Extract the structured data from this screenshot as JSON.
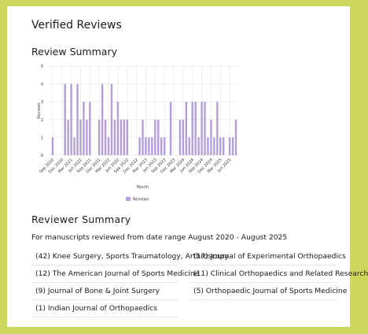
{
  "page": {
    "title": "Verified Reviews",
    "review_summary_heading": "Review Summary",
    "reviewer_summary_heading": "Reviewer Summary",
    "date_range_text": "For manuscripts reviewed from date range August 2020 - August 2025"
  },
  "colors": {
    "background": "#cdd75c",
    "bar": "#b39ddb",
    "grid": "#eeeeee"
  },
  "journals": [
    "(42) Knee Surgery, Sports Traumatology, Arthroscopy",
    "(17) Journal of Experimental Orthopaedics",
    "(12) The American Journal of Sports Medicine",
    "(11) Clinical Orthopaedics and Related Research",
    "(9) Journal of Bone & Joint Surgery",
    "(5) Orthopaedic Journal of Sports Medicine",
    "(1) Indian Journal of Orthopaedics"
  ],
  "chart_data": {
    "type": "bar",
    "xlabel": "Month",
    "ylabel": "Reviews",
    "ylim": [
      0,
      5
    ],
    "yticks": [
      0,
      1,
      2,
      3,
      4,
      5
    ],
    "legend": "Reviews",
    "legend_position": "bottom",
    "grid": true,
    "categories": [
      "Aug 2020",
      "Sep 2020",
      "Oct 2020",
      "Nov 2020",
      "Dec 2020",
      "Jan 2021",
      "Feb 2021",
      "Mar 2021",
      "Apr 2021",
      "May 2021",
      "Jun 2021",
      "Jul 2021",
      "Aug 2021",
      "Sep 2021",
      "Oct 2021",
      "Nov 2021",
      "Dec 2021",
      "Jan 2022",
      "Feb 2022",
      "Mar 2022",
      "Apr 2022",
      "May 2022",
      "Jun 2022",
      "Jul 2022",
      "Aug 2022",
      "Sep 2022",
      "Oct 2022",
      "Nov 2022",
      "Dec 2022",
      "Jan 2023",
      "Feb 2023",
      "Mar 2023",
      "Apr 2023",
      "May 2023",
      "Jun 2023",
      "Jul 2023",
      "Aug 2023",
      "Sep 2023",
      "Oct 2023",
      "Nov 2023",
      "Dec 2023",
      "Jan 2024",
      "Feb 2024",
      "Mar 2024",
      "Apr 2024",
      "May 2024",
      "Jun 2024",
      "Jul 2024",
      "Aug 2024",
      "Sep 2024",
      "Oct 2024",
      "Nov 2024",
      "Dec 2024",
      "Jan 2025",
      "Feb 2025",
      "Mar 2025",
      "Apr 2025",
      "May 2025",
      "Jun 2025",
      "Jul 2025",
      "Aug 2025"
    ],
    "values": [
      0,
      1,
      0,
      0,
      0,
      4,
      2,
      4,
      1,
      4,
      2,
      3,
      2,
      3,
      0,
      0,
      2,
      4,
      2,
      1,
      4,
      2,
      3,
      2,
      2,
      2,
      0,
      0,
      0,
      1,
      2,
      1,
      1,
      1,
      2,
      2,
      1,
      1,
      0,
      3,
      0,
      0,
      2,
      2,
      3,
      1,
      3,
      3,
      1,
      3,
      3,
      1,
      2,
      1,
      3,
      1,
      1,
      0,
      1,
      1,
      2
    ],
    "tick_labels": [
      {
        "index": 1,
        "label": "Sep 2020"
      },
      {
        "index": 4,
        "label": "Dec 2020"
      },
      {
        "index": 7,
        "label": "Mar 2021"
      },
      {
        "index": 10,
        "label": "Jun 2021"
      },
      {
        "index": 13,
        "label": "Sep 2021"
      },
      {
        "index": 16,
        "label": "Dec 2021"
      },
      {
        "index": 19,
        "label": "Mar 2022"
      },
      {
        "index": 22,
        "label": "Jun 2022"
      },
      {
        "index": 25,
        "label": "Sep 2022"
      },
      {
        "index": 28,
        "label": "Dec 2022"
      },
      {
        "index": 31,
        "label": "Mar 2023"
      },
      {
        "index": 34,
        "label": "Jun 2023"
      },
      {
        "index": 37,
        "label": "Sep 2023"
      },
      {
        "index": 40,
        "label": "Dec 2023"
      },
      {
        "index": 43,
        "label": "Mar 2024"
      },
      {
        "index": 46,
        "label": "Jun 2024"
      },
      {
        "index": 49,
        "label": "Sep 2024"
      },
      {
        "index": 52,
        "label": "Dec 2024"
      },
      {
        "index": 55,
        "label": "Mar 2025"
      },
      {
        "index": 58,
        "label": "Jun 2025"
      }
    ]
  }
}
